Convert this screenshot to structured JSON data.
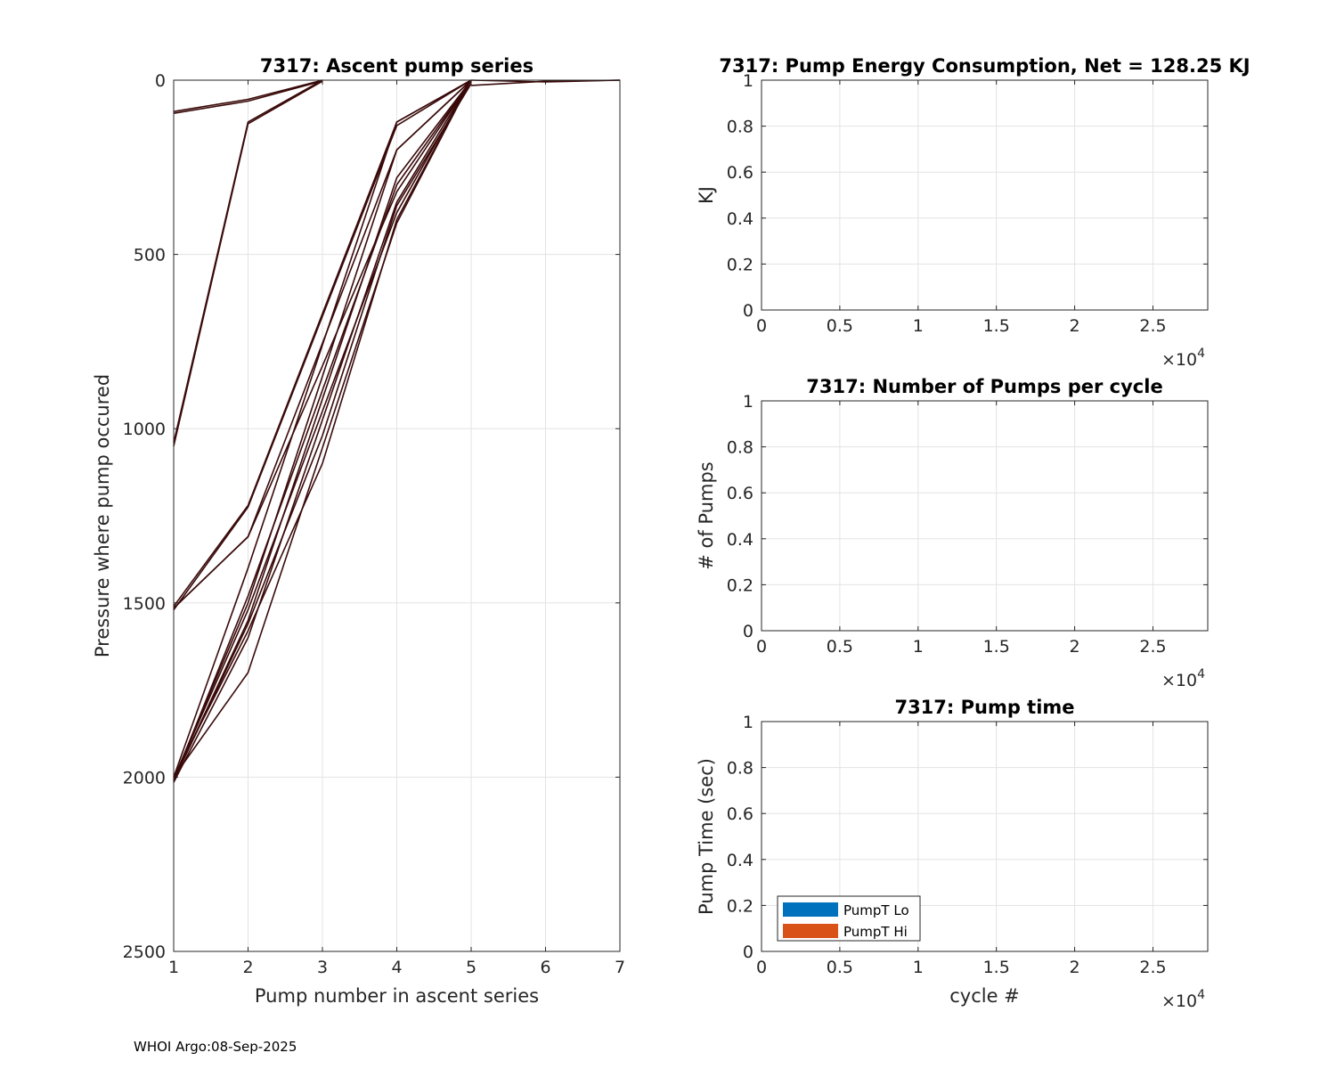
{
  "footer": "WHOI Argo:08-Sep-2025",
  "chart_data": [
    {
      "type": "line",
      "title": "7317: Ascent pump series",
      "xlabel": "Pump number in ascent series",
      "ylabel": "Pressure where pump occured",
      "xlim": [
        1,
        7
      ],
      "ylim": [
        0,
        2500
      ],
      "y_reversed": true,
      "xticks": [
        "1",
        "2",
        "3",
        "4",
        "5",
        "6",
        "7"
      ],
      "yticks": [
        "0",
        "500",
        "1000",
        "1500",
        "2000",
        "2500"
      ],
      "grid": true,
      "line_color": "#3a0a0a",
      "series": [
        {
          "x": [
            1,
            2,
            3
          ],
          "y": [
            90,
            55,
            0
          ]
        },
        {
          "x": [
            1,
            2,
            3
          ],
          "y": [
            95,
            60,
            2
          ]
        },
        {
          "x": [
            1,
            2,
            3
          ],
          "y": [
            1040,
            120,
            0
          ]
        },
        {
          "x": [
            1,
            2,
            3
          ],
          "y": [
            1050,
            125,
            3
          ]
        },
        {
          "x": [
            1,
            2,
            4,
            5
          ],
          "y": [
            1510,
            1220,
            120,
            0
          ]
        },
        {
          "x": [
            1,
            2,
            4,
            5
          ],
          "y": [
            1515,
            1310,
            200,
            0
          ]
        },
        {
          "x": [
            1,
            2,
            4,
            5
          ],
          "y": [
            1520,
            1225,
            130,
            0
          ]
        },
        {
          "x": [
            1,
            2,
            4,
            5
          ],
          "y": [
            2000,
            1400,
            120,
            0
          ]
        },
        {
          "x": [
            1,
            2,
            4,
            5
          ],
          "y": [
            2005,
            1500,
            200,
            0
          ]
        },
        {
          "x": [
            1,
            2,
            4,
            5
          ],
          "y": [
            2010,
            1550,
            280,
            0
          ]
        },
        {
          "x": [
            1,
            2,
            4,
            5
          ],
          "y": [
            2015,
            1600,
            350,
            0
          ]
        },
        {
          "x": [
            1,
            2,
            4,
            5
          ],
          "y": [
            2000,
            1700,
            410,
            0
          ]
        },
        {
          "x": [
            1,
            2,
            4,
            5
          ],
          "y": [
            2010,
            1480,
            300,
            0
          ]
        },
        {
          "x": [
            1,
            2,
            3,
            4,
            5
          ],
          "y": [
            2005,
            1520,
            950,
            380,
            0
          ]
        },
        {
          "x": [
            1,
            2,
            3,
            4,
            5
          ],
          "y": [
            2000,
            1580,
            1100,
            400,
            0
          ]
        },
        {
          "x": [
            1,
            2,
            3,
            4,
            5
          ],
          "y": [
            1515,
            1310,
            820,
            320,
            0
          ]
        },
        {
          "x": [
            1,
            2,
            3,
            4,
            5
          ],
          "y": [
            2010,
            1560,
            1020,
            360,
            10
          ]
        },
        {
          "x": [
            5,
            6,
            7
          ],
          "y": [
            0,
            5,
            0
          ]
        },
        {
          "x": [
            5,
            6,
            7
          ],
          "y": [
            15,
            3,
            0
          ]
        }
      ]
    },
    {
      "type": "line",
      "title": "7317: Pump Energy Consumption,  Net = 128.25 KJ",
      "xlabel": "",
      "ylabel": "KJ",
      "xlim": [
        0,
        2.85
      ],
      "ylim": [
        0,
        1
      ],
      "xticks": [
        "0",
        "0.5",
        "1",
        "1.5",
        "2",
        "2.5"
      ],
      "yticks": [
        "0",
        "0.2",
        "0.4",
        "0.6",
        "0.8",
        "1"
      ],
      "x_multiplier": "×10",
      "x_multiplier_exp": "4",
      "grid": true,
      "series": []
    },
    {
      "type": "line",
      "title": "7317: Number of Pumps per cycle",
      "xlabel": "",
      "ylabel": "# of Pumps",
      "xlim": [
        0,
        2.85
      ],
      "ylim": [
        0,
        1
      ],
      "xticks": [
        "0",
        "0.5",
        "1",
        "1.5",
        "2",
        "2.5"
      ],
      "yticks": [
        "0",
        "0.2",
        "0.4",
        "0.6",
        "0.8",
        "1"
      ],
      "x_multiplier": "×10",
      "x_multiplier_exp": "4",
      "grid": true,
      "series": []
    },
    {
      "type": "bar",
      "title": "7317: Pump time",
      "xlabel": "cycle #",
      "ylabel": "Pump Time (sec)",
      "xlim": [
        0,
        2.85
      ],
      "ylim": [
        0,
        1
      ],
      "xticks": [
        "0",
        "0.5",
        "1",
        "1.5",
        "2",
        "2.5"
      ],
      "yticks": [
        "0",
        "0.2",
        "0.4",
        "0.6",
        "0.8",
        "1"
      ],
      "x_multiplier": "×10",
      "x_multiplier_exp": "4",
      "grid": true,
      "legend_position": "bottom-left",
      "legend": [
        {
          "name": "PumpT Lo",
          "color": "#0072bd"
        },
        {
          "name": "PumpT Hi",
          "color": "#d95319"
        }
      ],
      "series": []
    }
  ]
}
